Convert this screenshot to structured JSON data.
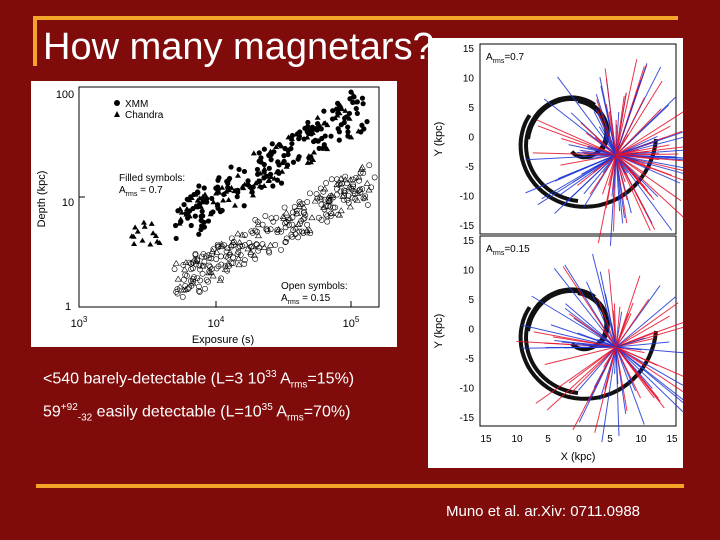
{
  "slide": {
    "title": "How many magnetars?",
    "caption": {
      "line1": {
        "prefix": "<540 barely-detectable (L=3 10",
        "exp": "33",
        "mid": " A",
        "sub": "rms",
        "suffix": "=15%)"
      },
      "line2": {
        "num": "59",
        "sup": "+92",
        "sub1": "-32",
        "mid": " easily detectable (L=10",
        "exp": "35",
        "mid2": " A",
        "sub2": "rms",
        "suffix": "=70%)"
      }
    },
    "citation": "Muno et al. ar.Xiv: 0711.0988"
  },
  "left_plot": {
    "ylabel": "Depth (kpc)",
    "xlabel": "Exposure (s)",
    "yticks": [
      "100",
      "10",
      "1"
    ],
    "xticks": [
      {
        "base": "10",
        "exp": "3"
      },
      {
        "base": "10",
        "exp": "4"
      },
      {
        "base": "10",
        "exp": "5"
      }
    ],
    "legend": [
      "XMM",
      "Chandra"
    ],
    "filled_note": {
      "line1": "Filled symbols:",
      "line2": "A",
      "sub": "rms",
      "val": " = 0.7"
    },
    "open_note": {
      "line1": "Open symbols:",
      "line2": "A",
      "sub": "rms",
      "val": " = 0.15"
    }
  },
  "right_plots": {
    "ylabel": "Y (kpc)",
    "xlabel": "X (kpc)",
    "top_label": {
      "a": "A",
      "sub": "rms",
      "val": "=0.7"
    },
    "bottom_label": {
      "a": "A",
      "sub": "rms",
      "val": "=0.15"
    },
    "yticks": [
      "15",
      "10",
      "5",
      "0",
      "-5",
      "-10",
      "-15"
    ],
    "xticks": [
      "15",
      "10",
      "5",
      "0",
      "5",
      "10",
      "15"
    ]
  },
  "colors": {
    "background": "#7f0b0b",
    "accent": "#f3a52a",
    "text": "#ffffff",
    "red_lines": "#e8102a",
    "blue_lines": "#1c34d6"
  }
}
